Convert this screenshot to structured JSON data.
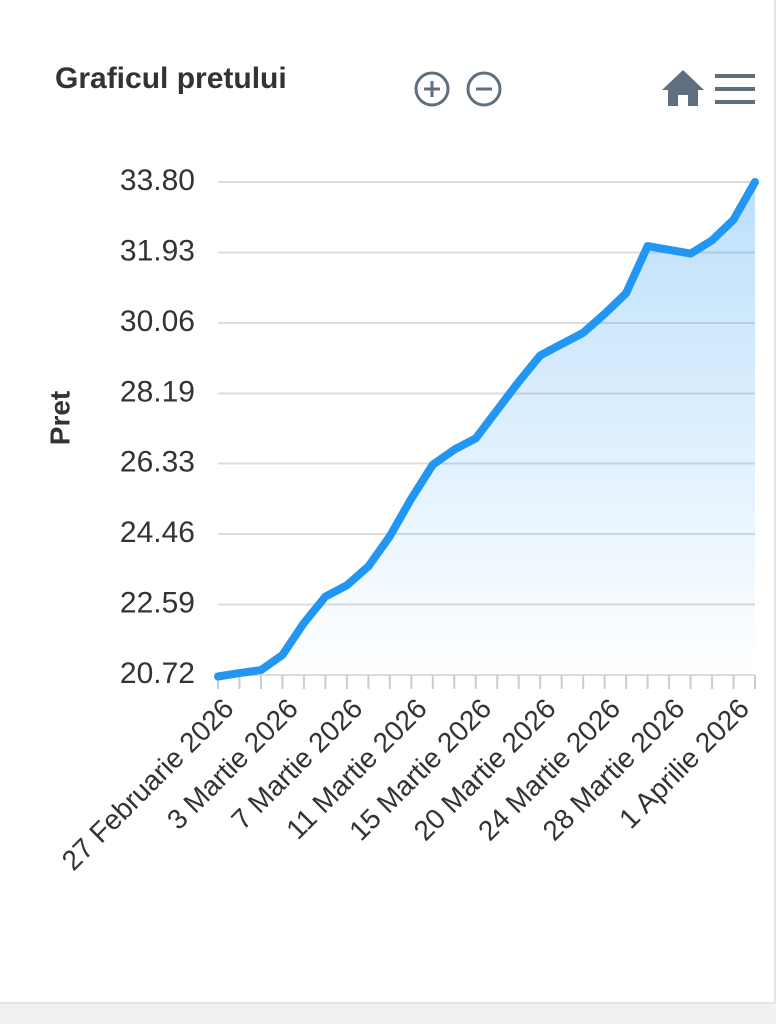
{
  "chart_data": {
    "type": "area",
    "title": "Graficul pretului",
    "y_label": "Pret",
    "categories": [
      "27 Februarie 2026",
      null,
      null,
      "3 Martie 2026",
      null,
      null,
      "7 Martie 2026",
      null,
      null,
      "11 Martie 2026",
      null,
      null,
      "15 Martie 2026",
      null,
      null,
      "20 Martie 2026",
      null,
      null,
      "24 Martie 2026",
      null,
      null,
      "28 Martie 2026",
      null,
      null,
      "1 Aprilie 2026",
      null
    ],
    "values": [
      20.68,
      20.77,
      20.85,
      21.25,
      22.1,
      22.8,
      23.1,
      23.6,
      24.4,
      25.4,
      26.3,
      26.7,
      27.0,
      27.75,
      28.5,
      29.2,
      29.5,
      29.8,
      30.3,
      30.85,
      32.1,
      32.0,
      31.9,
      32.25,
      32.8,
      33.8
    ],
    "color": "#2196f3",
    "ylim": [
      20.72,
      33.8
    ],
    "yticks": [
      20.72,
      22.59,
      24.46,
      26.33,
      28.19,
      30.06,
      31.93,
      {
        "value": 33.8,
        "label": "33.80"
      }
    ],
    "grid": true
  }
}
